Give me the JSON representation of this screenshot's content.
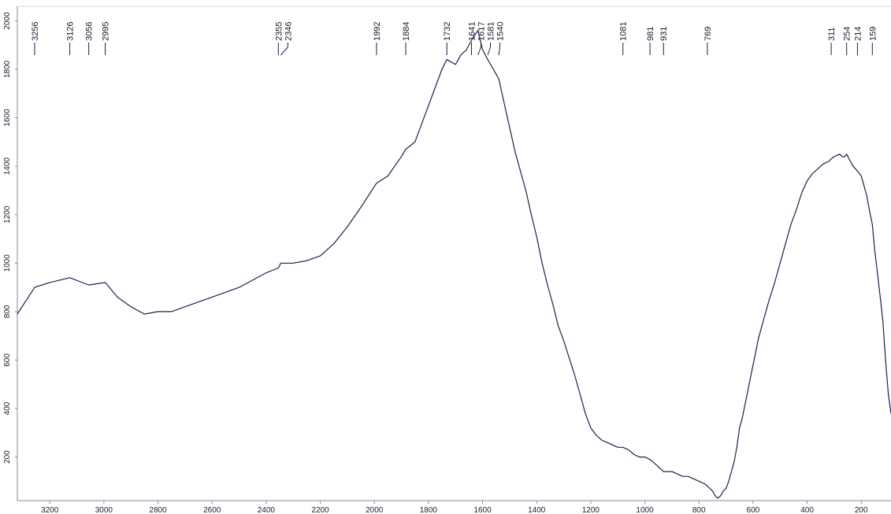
{
  "chart_data": {
    "type": "line",
    "title": "",
    "xlabel": "",
    "ylabel": "",
    "x_reversed": true,
    "xlim": [
      3320,
      90
    ],
    "ylim": [
      20,
      2060
    ],
    "yticks": [
      200,
      400,
      600,
      800,
      1000,
      1200,
      1400,
      1600,
      1800,
      2000
    ],
    "xticks": [
      3200,
      3000,
      2800,
      2600,
      2400,
      2200,
      2000,
      1800,
      1600,
      1400,
      1200,
      1000,
      800,
      600,
      400,
      200
    ],
    "line_color": "#1f1f4d",
    "peak_labels": [
      "3256",
      "3126",
      "3056",
      "2995",
      "2355",
      "2346",
      "1992",
      "1884",
      "1732",
      "1641",
      "1617",
      "1581",
      "1540",
      "1081",
      "981",
      "931",
      "769",
      "311",
      "254",
      "214",
      "159"
    ],
    "series": [
      {
        "x": [
          3320,
          3256,
          3200,
          3126,
          3056,
          2995,
          2950,
          2900,
          2850,
          2800,
          2750,
          2700,
          2650,
          2600,
          2550,
          2500,
          2450,
          2400,
          2355,
          2346,
          2300,
          2250,
          2200,
          2150,
          2100,
          2050,
          1992,
          1950,
          1900,
          1884,
          1850,
          1800,
          1750,
          1732,
          1700,
          1680,
          1660,
          1641,
          1630,
          1617,
          1600,
          1581,
          1560,
          1540,
          1520,
          1500,
          1480,
          1460,
          1440,
          1420,
          1400,
          1380,
          1360,
          1340,
          1320,
          1300,
          1280,
          1260,
          1240,
          1220,
          1200,
          1180,
          1160,
          1140,
          1120,
          1100,
          1081,
          1060,
          1040,
          1020,
          1000,
          981,
          960,
          931,
          900,
          880,
          860,
          840,
          820,
          800,
          780,
          769,
          750,
          740,
          730,
          720,
          710,
          700,
          690,
          680,
          670,
          660,
          650,
          640,
          620,
          600,
          580,
          560,
          540,
          520,
          500,
          480,
          460,
          440,
          420,
          400,
          380,
          360,
          340,
          320,
          311,
          300,
          280,
          270,
          260,
          254,
          240,
          230,
          214,
          200,
          190,
          180,
          170,
          159,
          150,
          140,
          130,
          120,
          110,
          100,
          90
        ],
        "y": [
          790,
          900,
          920,
          940,
          910,
          920,
          860,
          820,
          790,
          800,
          800,
          820,
          840,
          860,
          880,
          900,
          930,
          960,
          980,
          1000,
          1000,
          1010,
          1030,
          1080,
          1150,
          1230,
          1330,
          1360,
          1440,
          1470,
          1500,
          1650,
          1800,
          1840,
          1820,
          1860,
          1880,
          1920,
          1940,
          1960,
          1880,
          1840,
          1800,
          1760,
          1660,
          1560,
          1460,
          1380,
          1300,
          1200,
          1110,
          1000,
          910,
          830,
          740,
          680,
          610,
          540,
          460,
          380,
          320,
          290,
          270,
          260,
          250,
          240,
          240,
          230,
          210,
          200,
          200,
          190,
          170,
          140,
          140,
          130,
          120,
          120,
          110,
          100,
          90,
          80,
          60,
          40,
          30,
          40,
          60,
          70,
          100,
          140,
          180,
          240,
          320,
          360,
          470,
          580,
          690,
          770,
          850,
          920,
          1000,
          1080,
          1160,
          1220,
          1290,
          1340,
          1370,
          1390,
          1410,
          1420,
          1430,
          1440,
          1450,
          1440,
          1440,
          1450,
          1420,
          1400,
          1380,
          1360,
          1320,
          1280,
          1220,
          1160,
          1050,
          960,
          860,
          760,
          600,
          460,
          380
        ]
      }
    ]
  }
}
